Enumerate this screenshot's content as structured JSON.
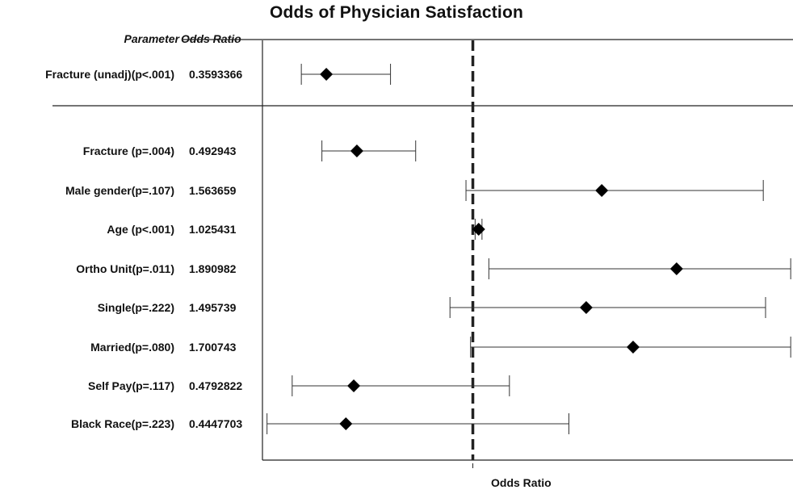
{
  "chart_data": {
    "type": "forest",
    "title": "Odds of Physician Satisfaction",
    "xlabel": "Odds Ratio",
    "column_headers": {
      "parameter": "Parameter",
      "odds_ratio": "Odds Ratio"
    },
    "reference_line": 1,
    "xlim": [
      0.08,
      2.4
    ],
    "rows": [
      {
        "label": "Fracture (unadj)(p<.001)",
        "odds_ratio_text": "0.3593366",
        "or": 0.3593366,
        "ci": [
          0.25,
          0.64
        ],
        "group": "unadjusted"
      },
      {
        "label": "Fracture (p=.004)",
        "odds_ratio_text": "0.492943",
        "or": 0.492943,
        "ci": [
          0.34,
          0.75
        ],
        "group": "adjusted"
      },
      {
        "label": "Male gender(p=.107)",
        "odds_ratio_text": "1.563659",
        "or": 1.563659,
        "ci": [
          0.97,
          2.27
        ],
        "group": "adjusted"
      },
      {
        "label": "Age (p<.001)",
        "odds_ratio_text": "1.025431",
        "or": 1.025431,
        "ci": [
          1.01,
          1.04
        ],
        "group": "adjusted"
      },
      {
        "label": "Ortho  Unit(p=.011)",
        "odds_ratio_text": "1.890982",
        "or": 1.890982,
        "ci": [
          1.07,
          2.39
        ],
        "group": "adjusted"
      },
      {
        "label": "Single(p=.222)",
        "odds_ratio_text": "1.495739",
        "or": 1.495739,
        "ci": [
          0.9,
          2.28
        ],
        "group": "adjusted"
      },
      {
        "label": "Married(p=.080)",
        "odds_ratio_text": "1.700743",
        "or": 1.700743,
        "ci": [
          0.99,
          2.39
        ],
        "group": "adjusted"
      },
      {
        "label": "Self Pay(p=.117)",
        "odds_ratio_text": "0.4792822",
        "or": 0.4792822,
        "ci": [
          0.21,
          1.16
        ],
        "group": "adjusted"
      },
      {
        "label": "Black Race(p=.223)",
        "odds_ratio_text": "0.4447703",
        "or": 0.4447703,
        "ci": [
          0.1,
          1.42
        ],
        "group": "adjusted"
      }
    ]
  }
}
